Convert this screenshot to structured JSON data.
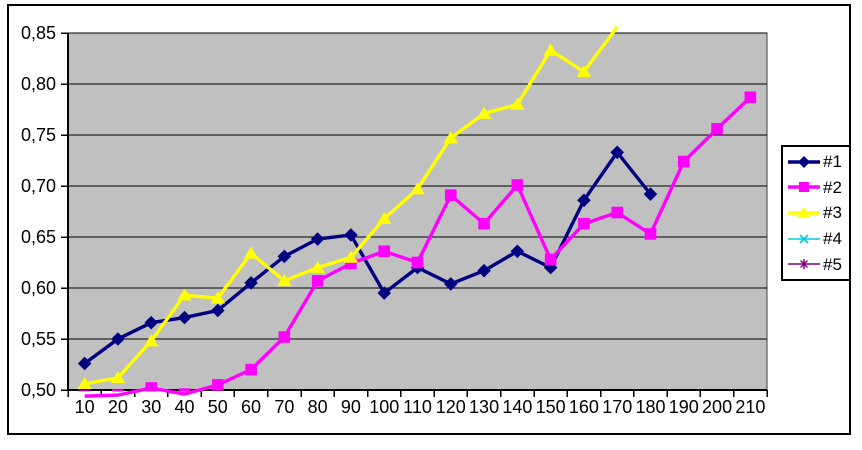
{
  "chart_data": {
    "type": "line",
    "title": "",
    "xlabel": "",
    "ylabel": "",
    "grid": true,
    "plot_bg_color": "#C0C0C0",
    "gridline_color": "#000000",
    "axis_color": "#000000",
    "legend_position": "right",
    "decimal_separator": ",",
    "ylim": [
      0.5,
      0.85
    ],
    "y_tick_step": 0.05,
    "y_tick_labels": [
      "0,50",
      "0,55",
      "0,60",
      "0,65",
      "0,70",
      "0,75",
      "0,80",
      "0,85"
    ],
    "x_categories": [
      10,
      20,
      30,
      40,
      50,
      60,
      70,
      80,
      90,
      100,
      110,
      120,
      130,
      140,
      150,
      160,
      170,
      180,
      190,
      200,
      210
    ],
    "series": [
      {
        "name": "#1",
        "color": "#000080",
        "marker": "diamond",
        "line_weight": "thick",
        "values": [
          0.526,
          0.55,
          0.566,
          0.571,
          0.578,
          0.605,
          0.631,
          0.648,
          0.652,
          0.595,
          0.62,
          0.604,
          0.617,
          0.636,
          0.62,
          0.686,
          0.733,
          0.692
        ]
      },
      {
        "name": "#2",
        "color": "#FF00FF",
        "marker": "square",
        "line_weight": "thick",
        "values": [
          0.494,
          0.495,
          0.502,
          0.496,
          0.505,
          0.52,
          0.552,
          0.607,
          0.624,
          0.636,
          0.625,
          0.691,
          0.663,
          0.701,
          0.628,
          0.663,
          0.674,
          0.653,
          0.724,
          0.756,
          0.787
        ]
      },
      {
        "name": "#3",
        "color": "#FFFF00",
        "marker": "triangle",
        "line_weight": "thick",
        "values": [
          0.506,
          0.512,
          0.548,
          0.593,
          0.59,
          0.634,
          0.607,
          0.62,
          0.63,
          0.668,
          0.697,
          0.747,
          0.771,
          0.78,
          0.833,
          0.812,
          0.856
        ]
      },
      {
        "name": "#4",
        "color": "#00CCDD",
        "marker": "x",
        "line_weight": "thin",
        "values": []
      },
      {
        "name": "#5",
        "color": "#800080",
        "marker": "star",
        "line_weight": "thin",
        "values": []
      }
    ]
  }
}
